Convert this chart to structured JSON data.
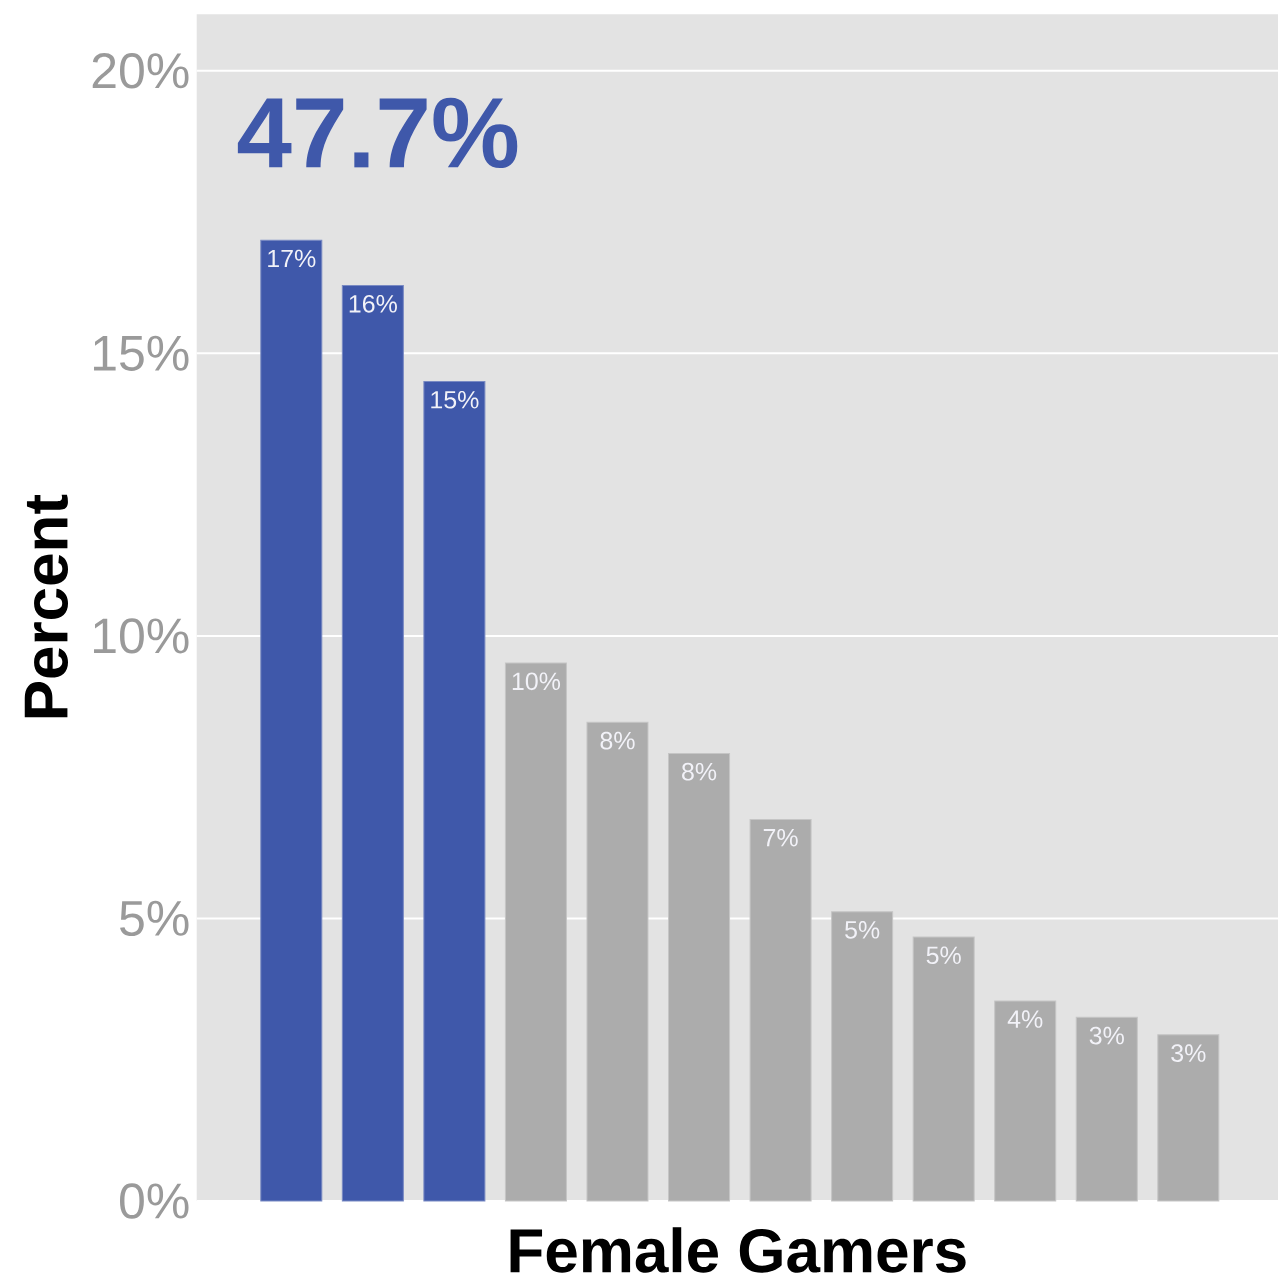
{
  "chart_data": {
    "type": "bar",
    "xlabel": "Female Gamers",
    "ylabel": "Percent",
    "annotations": [
      "47.7%"
    ],
    "categories": [
      null,
      null,
      null,
      null,
      null,
      null,
      null,
      null,
      null,
      null,
      null,
      null
    ],
    "values": [
      17.0,
      16.2,
      14.5,
      9.52,
      8.47,
      7.92,
      6.75,
      5.12,
      4.67,
      3.54,
      3.25,
      2.94
    ],
    "colors": [
      "#3f58aa",
      "#3f58aa",
      "#3f58aa",
      "#acacac",
      "#acacac",
      "#acacac",
      "#acacac",
      "#acacac",
      "#acacac",
      "#acacac",
      "#acacac",
      "#acacac"
    ],
    "value_labels": [
      "17%",
      "16%",
      "15%",
      "10%",
      "8%",
      "8%",
      "7%",
      "5%",
      "5%",
      "4%",
      "3%",
      "3%"
    ],
    "ylim": [
      0,
      21
    ],
    "yticks": [
      {
        "value": 0,
        "label": "0%"
      },
      {
        "value": 5,
        "label": "5%"
      },
      {
        "value": 10,
        "label": "10%"
      },
      {
        "value": 15,
        "label": "15%"
      },
      {
        "value": 20,
        "label": "20%"
      }
    ],
    "grid": "y"
  }
}
